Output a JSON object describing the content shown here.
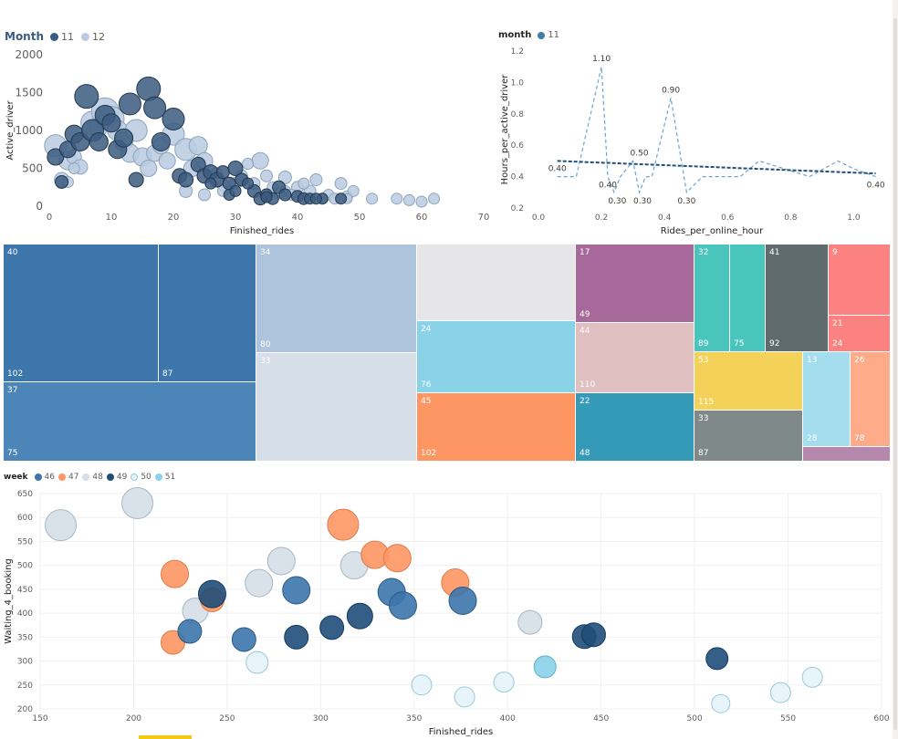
{
  "chart_data": [
    {
      "type": "scatter",
      "xlabel": "Finished_rides",
      "ylabel": "Active_driver",
      "xlim": [
        0,
        70
      ],
      "ylim": [
        0,
        2000
      ],
      "xticks": [
        0,
        10,
        20,
        30,
        40,
        50,
        60,
        70
      ],
      "yticks": [
        0,
        500,
        1000,
        1500,
        2000
      ],
      "legend": {
        "title": "Month",
        "items": [
          {
            "label": "11",
            "color": "#3b5b7f"
          },
          {
            "label": "12",
            "color": "#b8cbe0"
          }
        ]
      },
      "grid": false,
      "series": [
        {
          "name": "12",
          "color": "#b8cbe0",
          "points": [
            [
              1,
              800,
              22
            ],
            [
              3,
              600,
              18
            ],
            [
              2,
              350,
              14
            ],
            [
              4,
              650,
              14
            ],
            [
              5,
              520,
              14
            ],
            [
              4,
              500,
              10
            ],
            [
              3,
              320,
              10
            ],
            [
              7,
              1100,
              24
            ],
            [
              9,
              1250,
              28
            ],
            [
              8,
              1050,
              18
            ],
            [
              10,
              1150,
              26
            ],
            [
              11,
              1000,
              20
            ],
            [
              12,
              850,
              18
            ],
            [
              13,
              700,
              18
            ],
            [
              14,
              1000,
              22
            ],
            [
              15,
              650,
              18
            ],
            [
              16,
              500,
              16
            ],
            [
              17,
              700,
              16
            ],
            [
              18,
              800,
              16
            ],
            [
              19,
              600,
              16
            ],
            [
              20,
              950,
              22
            ],
            [
              22,
              750,
              22
            ],
            [
              23,
              500,
              16
            ],
            [
              24,
              800,
              18
            ],
            [
              25,
              600,
              16
            ],
            [
              22,
              200,
              12
            ],
            [
              25,
              150,
              11
            ],
            [
              28,
              280,
              11
            ],
            [
              30,
              300,
              11
            ],
            [
              31,
              400,
              11
            ],
            [
              33,
              300,
              11
            ],
            [
              35,
              400,
              11
            ],
            [
              36,
              250,
              10
            ],
            [
              38,
              200,
              10
            ],
            [
              40,
              250,
              11
            ],
            [
              42,
              200,
              11
            ],
            [
              43,
              350,
              11
            ],
            [
              45,
              150,
              10
            ],
            [
              46,
              100,
              10
            ],
            [
              47,
              300,
              11
            ],
            [
              48,
              130,
              10
            ],
            [
              49,
              200,
              10
            ],
            [
              52,
              100,
              10
            ],
            [
              56,
              100,
              10
            ],
            [
              58,
              80,
              10
            ],
            [
              62,
              100,
              10
            ],
            [
              60,
              60,
              10
            ],
            [
              44,
              100,
              10
            ],
            [
              37,
              170,
              10
            ],
            [
              39,
              150,
              10
            ],
            [
              41,
              300,
              10
            ],
            [
              34,
              600,
              16
            ],
            [
              31,
              350,
              12
            ],
            [
              28,
              200,
              10
            ],
            [
              38,
              380,
              12
            ],
            [
              48,
              100,
              9
            ],
            [
              27,
              440,
              10
            ],
            [
              32,
              560,
              10
            ]
          ]
        },
        {
          "name": "11",
          "color": "#3b5b7f",
          "points": [
            [
              1,
              650,
              16
            ],
            [
              2,
              320,
              12
            ],
            [
              3,
              750,
              16
            ],
            [
              4,
              950,
              18
            ],
            [
              5,
              850,
              18
            ],
            [
              6,
              1450,
              24
            ],
            [
              7,
              1000,
              22
            ],
            [
              8,
              850,
              18
            ],
            [
              9,
              1200,
              20
            ],
            [
              10,
              1100,
              18
            ],
            [
              11,
              750,
              18
            ],
            [
              12,
              900,
              18
            ],
            [
              13,
              1350,
              22
            ],
            [
              14,
              350,
              14
            ],
            [
              16,
              1550,
              24
            ],
            [
              17,
              1300,
              22
            ],
            [
              18,
              850,
              18
            ],
            [
              20,
              1150,
              22
            ],
            [
              21,
              400,
              14
            ],
            [
              22,
              350,
              14
            ],
            [
              24,
              550,
              14
            ],
            [
              25,
              400,
              14
            ],
            [
              26,
              450,
              14
            ],
            [
              27,
              350,
              14
            ],
            [
              28,
              450,
              12
            ],
            [
              29,
              300,
              12
            ],
            [
              30,
              500,
              14
            ],
            [
              31,
              350,
              12
            ],
            [
              33,
              200,
              12
            ],
            [
              34,
              100,
              12
            ],
            [
              35,
              150,
              11
            ],
            [
              36,
              100,
              11
            ],
            [
              37,
              250,
              12
            ],
            [
              38,
              150,
              11
            ],
            [
              40,
              130,
              11
            ],
            [
              41,
              100,
              11
            ],
            [
              42,
              100,
              10
            ],
            [
              44,
              100,
              10
            ],
            [
              47,
              100,
              10
            ],
            [
              29,
              150,
              10
            ],
            [
              32,
              300,
              10
            ],
            [
              35,
              120,
              10
            ],
            [
              30,
              200,
              10
            ],
            [
              43,
              100,
              10
            ],
            [
              26,
              300,
              10
            ]
          ]
        }
      ]
    },
    {
      "type": "line",
      "xlabel": "Rides_per_online_hour",
      "ylabel": "Hours_per_active_driver",
      "xlim": [
        0.0,
        1.1
      ],
      "ylim": [
        0.2,
        1.2
      ],
      "xticks": [
        0.0,
        0.2,
        0.4,
        0.6,
        0.8,
        1.0
      ],
      "xtick_labels": [
        "0.0",
        "0.2",
        "0.4",
        "0.6",
        "0.8",
        "1.0"
      ],
      "yticks": [
        0.2,
        0.4,
        0.6,
        0.8,
        1.0,
        1.2
      ],
      "ytick_labels": [
        "0.2",
        "0.4",
        "0.6",
        "0.8",
        "1.0",
        "1.2"
      ],
      "legend": {
        "title": "month",
        "items": [
          {
            "label": "11",
            "color": "#3e7fa3"
          }
        ]
      },
      "series": [
        {
          "name": "11",
          "color": "#6ca5c8",
          "x": [
            0.06,
            0.12,
            0.2,
            0.22,
            0.24,
            0.26,
            0.3,
            0.32,
            0.34,
            0.36,
            0.42,
            0.47,
            0.52,
            0.58,
            0.64,
            0.7,
            0.78,
            0.86,
            0.95,
            1.0,
            1.07
          ],
          "y": [
            0.4,
            0.4,
            1.1,
            0.4,
            0.3,
            0.4,
            0.5,
            0.3,
            0.4,
            0.4,
            0.9,
            0.3,
            0.4,
            0.4,
            0.4,
            0.5,
            0.45,
            0.4,
            0.5,
            0.45,
            0.4
          ]
        }
      ],
      "trendline": {
        "x": [
          0.06,
          1.07
        ],
        "y": [
          0.5,
          0.42
        ],
        "color": "#1f4e79"
      },
      "data_labels": [
        {
          "x": 0.06,
          "y": 0.4,
          "text": "0.40"
        },
        {
          "x": 0.2,
          "y": 1.1,
          "text": "1.10"
        },
        {
          "x": 0.22,
          "y": 0.4,
          "text": "0.40"
        },
        {
          "x": 0.25,
          "y": 0.3,
          "text": "0.30"
        },
        {
          "x": 0.33,
          "y": 0.3,
          "text": "0.30"
        },
        {
          "x": 0.32,
          "y": 0.5,
          "text": "0.50"
        },
        {
          "x": 0.42,
          "y": 0.9,
          "text": "0.90"
        },
        {
          "x": 0.47,
          "y": 0.3,
          "text": "0.30"
        },
        {
          "x": 1.07,
          "y": 0.4,
          "text": "0.40"
        }
      ]
    },
    {
      "type": "treemap",
      "cells": [
        {
          "label_top": "40",
          "label_bottom": "102",
          "color": "#3c76ab"
        },
        {
          "label_top": "",
          "label_bottom": "87",
          "color": "#3c76ab"
        },
        {
          "label_top": "37",
          "label_bottom": "75",
          "color": "#4c85b8"
        },
        {
          "label_top": "34",
          "label_bottom": "80",
          "color": "#aec4dc"
        },
        {
          "label_top": "33",
          "label_bottom": "",
          "color": "#d6dfe7"
        },
        {
          "label_top": "",
          "label_bottom": "",
          "color": "#e6e6e8"
        },
        {
          "label_top": "24",
          "label_bottom": "76",
          "color": "#89d2e8"
        },
        {
          "label_top": "45",
          "label_bottom": "102",
          "color": "#fe9663"
        },
        {
          "label_top": "17",
          "label_bottom": "49",
          "color": "#a66999"
        },
        {
          "label_top": "44",
          "label_bottom": "110",
          "color": "#dfbfbf"
        },
        {
          "label_top": "22",
          "label_bottom": "48",
          "color": "#3599b8"
        },
        {
          "label_top": "32",
          "label_bottom": "89",
          "color": "#4ac5bb"
        },
        {
          "label_top": "",
          "label_bottom": "75",
          "color": "#4ac5bb"
        },
        {
          "label_top": "41",
          "label_bottom": "92",
          "color": "#5f6b6d"
        },
        {
          "label_top": "9",
          "label_bottom": "",
          "color": "#fb8281"
        },
        {
          "label_top": "21",
          "label_bottom": "24",
          "color": "#fb8281"
        },
        {
          "label_top": "53",
          "label_bottom": "115",
          "color": "#f4d25a"
        },
        {
          "label_top": "33",
          "label_bottom": "87",
          "color": "#7f898a"
        },
        {
          "label_top": "13",
          "label_bottom": "28",
          "color": "#a4ddee"
        },
        {
          "label_top": "26",
          "label_bottom": "78",
          "color": "#fdab89"
        },
        {
          "label_top": "",
          "label_bottom": "",
          "color": "#b687ac"
        }
      ]
    },
    {
      "type": "scatter",
      "xlabel": "Finished_rides",
      "ylabel": "Waiting_4_booking",
      "xlim": [
        150,
        600
      ],
      "ylim": [
        200,
        650
      ],
      "xticks": [
        150,
        200,
        250,
        300,
        350,
        400,
        450,
        500,
        550,
        600
      ],
      "yticks": [
        200,
        250,
        300,
        350,
        400,
        450,
        500,
        550,
        600,
        650
      ],
      "legend": {
        "title": "week",
        "items": [
          {
            "label": "46",
            "color": "#3c76ab"
          },
          {
            "label": "47",
            "color": "#fe9663"
          },
          {
            "label": "48",
            "color": "#d6dfe7"
          },
          {
            "label": "49",
            "color": "#1f4e79"
          },
          {
            "label": "50",
            "color": "#e4f3f8"
          },
          {
            "label": "51",
            "color": "#89d2e8"
          }
        ]
      },
      "grid": true,
      "series": [
        {
          "name": "48",
          "color": "#d6dfe7",
          "points": [
            [
              161,
              584,
              17
            ],
            [
              202,
              630,
              17
            ],
            [
              233,
              405,
              14
            ],
            [
              267,
              463,
              15
            ],
            [
              279,
              509,
              15
            ],
            [
              318,
              500,
              15
            ],
            [
              412,
              381,
              13
            ]
          ]
        },
        {
          "name": "47",
          "color": "#fe9663",
          "points": [
            [
              222,
              482,
              15
            ],
            [
              242,
              428,
              13
            ],
            [
              221,
              339,
              13
            ],
            [
              312,
              585,
              17
            ],
            [
              329,
              522,
              15
            ],
            [
              341,
              515,
              15
            ],
            [
              372,
              464,
              15
            ]
          ]
        },
        {
          "name": "46",
          "color": "#3c76ab",
          "points": [
            [
              230,
              362,
              13
            ],
            [
              259,
              345,
              13
            ],
            [
              287,
              448,
              15
            ],
            [
              338,
              444,
              15
            ],
            [
              344,
              416,
              15
            ],
            [
              376,
              426,
              15
            ]
          ]
        },
        {
          "name": "49",
          "color": "#1f4e79",
          "points": [
            [
              242,
              440,
              15
            ],
            [
              287,
              350,
              13
            ],
            [
              306,
              370,
              13
            ],
            [
              321,
              394,
              14
            ],
            [
              441,
              351,
              13
            ],
            [
              446,
              355,
              13
            ],
            [
              512,
              305,
              12
            ]
          ]
        },
        {
          "name": "50",
          "color": "#e4f3f8",
          "points": [
            [
              266,
              297,
              12
            ],
            [
              354,
              250,
              11
            ],
            [
              377,
              225,
              11
            ],
            [
              398,
              256,
              11
            ],
            [
              514,
              211,
              10
            ],
            [
              546,
              234,
              11
            ],
            [
              563,
              266,
              11
            ]
          ]
        },
        {
          "name": "51",
          "color": "#89d2e8",
          "points": [
            [
              420,
              288,
              12
            ]
          ]
        }
      ]
    }
  ]
}
